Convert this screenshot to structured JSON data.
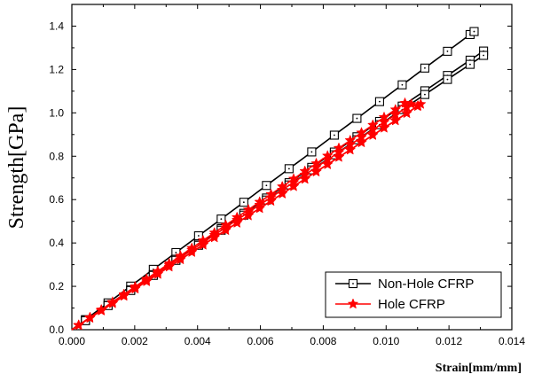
{
  "chart_data": {
    "type": "line",
    "title": "",
    "xlabel": "Strain[mm/mm]",
    "ylabel": "Strength[GPa]",
    "xlim": [
      0,
      0.014
    ],
    "ylim": [
      0,
      1.5
    ],
    "x_ticks": [
      "0.000",
      "0.002",
      "0.004",
      "0.006",
      "0.008",
      "0.010",
      "0.012",
      "0.014"
    ],
    "y_ticks": [
      "0.0",
      "0.2",
      "0.4",
      "0.6",
      "0.8",
      "1.0",
      "1.2",
      "1.4"
    ],
    "grid": false,
    "legend_position": "bottom-right",
    "series": [
      {
        "name": "Non-Hole CFRP",
        "color": "#000000",
        "marker": "square",
        "curves": [
          {
            "x": [
              0,
              0.0128
            ],
            "y": [
              0,
              1.375
            ],
            "k": 0.0055
          },
          {
            "x": [
              0,
              0.0131
            ],
            "y": [
              0,
              1.285
            ],
            "k": 0.0055
          },
          {
            "x": [
              0,
              0.0131
            ],
            "y": [
              0,
              1.265
            ],
            "k": 0.0055
          }
        ]
      },
      {
        "name": "Hole CFRP",
        "color": "#ff0000",
        "marker": "star",
        "curves": [
          {
            "x": [
              0,
              0.0106
            ],
            "y": [
              0,
              1.045
            ],
            "k": 0.0045
          },
          {
            "x": [
              0,
              0.0108
            ],
            "y": [
              0,
              1.04
            ],
            "k": 0.0045
          },
          {
            "x": [
              0,
              0.0111
            ],
            "y": [
              0,
              1.04
            ],
            "k": 0.0045
          },
          {
            "x": [
              0,
              0.011
            ],
            "y": [
              0,
              1.03
            ],
            "k": 0.0045
          }
        ]
      }
    ]
  }
}
